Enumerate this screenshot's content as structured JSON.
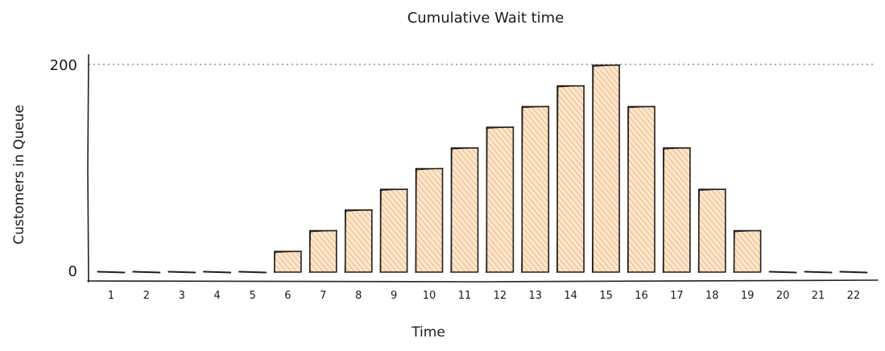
{
  "chart_data": {
    "type": "bar",
    "title": "Cumulative Wait time",
    "xlabel": "Time",
    "ylabel": "Customers in Queue",
    "categories": [
      "1",
      "2",
      "3",
      "4",
      "5",
      "6",
      "7",
      "8",
      "9",
      "10",
      "11",
      "12",
      "13",
      "14",
      "15",
      "16",
      "17",
      "18",
      "19",
      "20",
      "21",
      "22"
    ],
    "values": [
      0,
      0,
      0,
      0,
      0,
      20,
      40,
      60,
      80,
      100,
      120,
      140,
      160,
      180,
      200,
      160,
      120,
      80,
      40,
      0,
      0,
      0
    ],
    "ylim": [
      0,
      200
    ],
    "yticks": [
      "0",
      "200"
    ],
    "grid": "dotted line at 200",
    "bar_color": "#f4a261"
  }
}
